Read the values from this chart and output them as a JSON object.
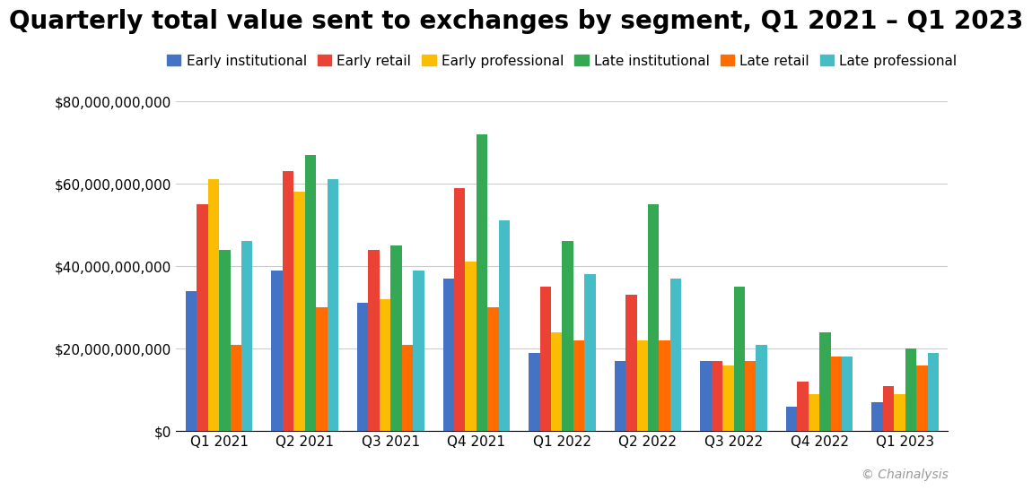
{
  "title": "Quarterly total value sent to exchanges by segment, Q1 2021 – Q1 2023",
  "quarters": [
    "Q1 2021",
    "Q2 2021",
    "Q3 2021",
    "Q4 2021",
    "Q1 2022",
    "Q2 2022",
    "Q3 2022",
    "Q4 2022",
    "Q1 2023"
  ],
  "segments": [
    "Early institutional",
    "Early retail",
    "Early professional",
    "Late institutional",
    "Late retail",
    "Late professional"
  ],
  "colors": [
    "#4472c4",
    "#ea4335",
    "#fbbc04",
    "#34a853",
    "#ff6d00",
    "#46bdc6"
  ],
  "data": {
    "Early institutional": [
      34000000000.0,
      39000000000.0,
      31000000000.0,
      37000000000.0,
      19000000000.0,
      17000000000.0,
      17000000000.0,
      6000000000.0,
      7000000000.0
    ],
    "Early retail": [
      55000000000.0,
      63000000000.0,
      44000000000.0,
      59000000000.0,
      35000000000.0,
      33000000000.0,
      17000000000.0,
      12000000000.0,
      11000000000.0
    ],
    "Early professional": [
      61000000000.0,
      58000000000.0,
      32000000000.0,
      41000000000.0,
      24000000000.0,
      22000000000.0,
      16000000000.0,
      9000000000.0,
      9000000000.0
    ],
    "Late institutional": [
      44000000000.0,
      67000000000.0,
      45000000000.0,
      72000000000.0,
      46000000000.0,
      55000000000.0,
      35000000000.0,
      24000000000.0,
      20000000000.0
    ],
    "Late retail": [
      21000000000.0,
      30000000000.0,
      21000000000.0,
      30000000000.0,
      22000000000.0,
      22000000000.0,
      17000000000.0,
      18000000000.0,
      16000000000.0
    ],
    "Late professional": [
      46000000000.0,
      61000000000.0,
      39000000000.0,
      51000000000.0,
      38000000000.0,
      37000000000.0,
      21000000000.0,
      18000000000.0,
      19000000000.0
    ]
  },
  "ylim": [
    0,
    80000000000.0
  ],
  "yticks": [
    0,
    20000000000.0,
    40000000000.0,
    60000000000.0,
    80000000000.0
  ],
  "background_color": "#ffffff",
  "grid_color": "#cccccc",
  "copyright_text": "© Chainalysis",
  "title_fontsize": 20,
  "tick_fontsize": 11,
  "legend_fontsize": 11
}
